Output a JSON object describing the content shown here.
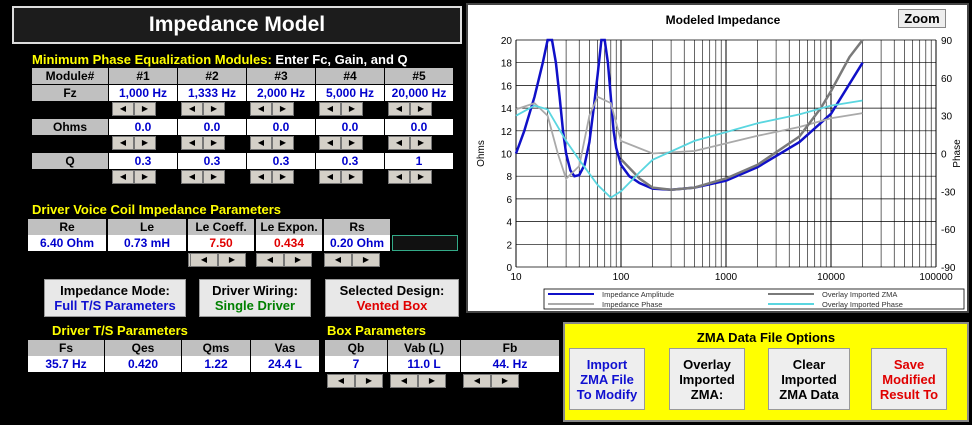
{
  "title": "Impedance Model",
  "eq": {
    "title_yellow": "Minimum Phase Equalization Modules:",
    "title_white": " Enter Fc, Gain, and Q",
    "row_labels": {
      "module": "Module#",
      "fz": "Fz",
      "ohms": "Ohms",
      "q": "Q"
    },
    "modules": [
      "#1",
      "#2",
      "#3",
      "#4",
      "#5"
    ],
    "fz": [
      "1,000 Hz",
      "1,333 Hz",
      "2,000 Hz",
      "5,000 Hz",
      "20,000 Hz"
    ],
    "ohms": [
      "0.0",
      "0.0",
      "0.0",
      "0.0",
      "0.0"
    ],
    "q": [
      "0.3",
      "0.3",
      "0.3",
      "0.3",
      "1"
    ]
  },
  "voice_coil": {
    "title": "Driver Voice Coil Impedance Parameters",
    "headers": [
      "Re",
      "Le",
      "Le Coeff.",
      "Le Expon.",
      "Rs"
    ],
    "values": [
      "6.40 Ohm",
      "0.73 mH",
      "7.50",
      "0.434",
      "0.20 Ohm"
    ]
  },
  "modes": {
    "impedance_label": "Impedance Mode:",
    "impedance_value": "Full T/S Parameters",
    "wiring_label": "Driver Wiring:",
    "wiring_value": "Single Driver",
    "design_label": "Selected Design:",
    "design_value": "Vented Box"
  },
  "ts": {
    "title": "Driver T/S Parameters",
    "headers": [
      "Fs",
      "Qes",
      "Qms",
      "Vas"
    ],
    "values": [
      "35.7 Hz",
      "0.420",
      "1.22",
      "24.4 L"
    ]
  },
  "box": {
    "title": "Box Parameters",
    "headers": [
      "Qb",
      "Vab (L)",
      "Fb"
    ],
    "values": [
      "7",
      "11.0 L",
      "44. Hz"
    ]
  },
  "zma": {
    "title": "ZMA Data File Options",
    "import": [
      "Import",
      "ZMA File",
      "To Modify"
    ],
    "overlay": [
      "Overlay",
      "Imported",
      "ZMA:"
    ],
    "clear": [
      "Clear",
      "Imported",
      "ZMA Data"
    ],
    "save": [
      "Save",
      "Modified",
      "Result To"
    ]
  },
  "spin": {
    "left": "◀",
    "right": "▶"
  },
  "colors": {
    "yellow": "#ffff00",
    "blue_val": "#0000cc",
    "red_val": "#e00000",
    "green_val": "#008000"
  },
  "chart_data": {
    "type": "line",
    "title": "Modeled Impedance",
    "zoom_label": "Zoom",
    "xlabel": "",
    "ylabel": "Ohms",
    "y2label": "Phase",
    "xscale": "log",
    "xlim": [
      10,
      100000
    ],
    "ylim": [
      0,
      20
    ],
    "y2lim": [
      -90,
      90
    ],
    "x_ticks": [
      "10",
      "100",
      "1000",
      "10000",
      "100000"
    ],
    "y_ticks": [
      "0",
      "2",
      "4",
      "6",
      "8",
      "10",
      "12",
      "14",
      "16",
      "18",
      "20"
    ],
    "y2_ticks": [
      "-90",
      "-60",
      "-30",
      "0",
      "30",
      "60",
      "90"
    ],
    "grid": true,
    "legend_position": "bottom",
    "series": [
      {
        "name": "Impedance Amplitude",
        "color": "#1010c8",
        "axis": "left",
        "x": [
          10,
          12,
          15,
          18,
          20,
          22,
          24,
          26,
          28,
          30,
          33,
          36,
          40,
          45,
          50,
          55,
          60,
          65,
          70,
          75,
          80,
          85,
          90,
          100,
          120,
          150,
          200,
          300,
          500,
          1000,
          2000,
          5000,
          10000,
          20000
        ],
        "y": [
          10,
          12,
          15,
          18,
          20,
          20,
          18,
          15,
          12,
          10,
          8.5,
          8,
          8.1,
          9,
          11,
          14,
          17,
          20,
          20,
          18,
          15,
          12,
          10.5,
          9,
          8,
          7.4,
          6.9,
          6.8,
          7,
          7.6,
          8.8,
          11,
          13.5,
          18
        ]
      },
      {
        "name": "Impedance Phase",
        "color": "#aaaaaa",
        "axis": "right",
        "x": [
          10,
          15,
          20,
          25,
          30,
          40,
          50,
          60,
          80,
          100,
          200,
          500,
          1000,
          2000,
          5000,
          10000,
          20000
        ],
        "y": [
          35,
          40,
          30,
          0,
          -20,
          -10,
          30,
          45,
          40,
          10,
          0,
          2,
          8,
          14,
          21,
          28,
          32
        ]
      },
      {
        "name": "Overlay Imported ZMA",
        "color": "#7a7a7a",
        "axis": "left",
        "x": [
          100,
          150,
          200,
          300,
          500,
          1000,
          2000,
          5000,
          8000,
          10000,
          15000,
          20000
        ],
        "y": [
          9.5,
          7.8,
          7,
          6.8,
          7,
          7.8,
          9,
          11.5,
          14,
          15.5,
          18.5,
          20
        ]
      },
      {
        "name": "Overlay Imported Phase",
        "color": "#5ad6e0",
        "axis": "right",
        "x": [
          10,
          15,
          20,
          30,
          40,
          60,
          80,
          100,
          150,
          200,
          500,
          1000,
          2000,
          5000,
          10000,
          20000
        ],
        "y": [
          30,
          38,
          35,
          10,
          -5,
          -25,
          -35,
          -30,
          -15,
          -5,
          10,
          17,
          24,
          31,
          38,
          42
        ]
      }
    ]
  }
}
